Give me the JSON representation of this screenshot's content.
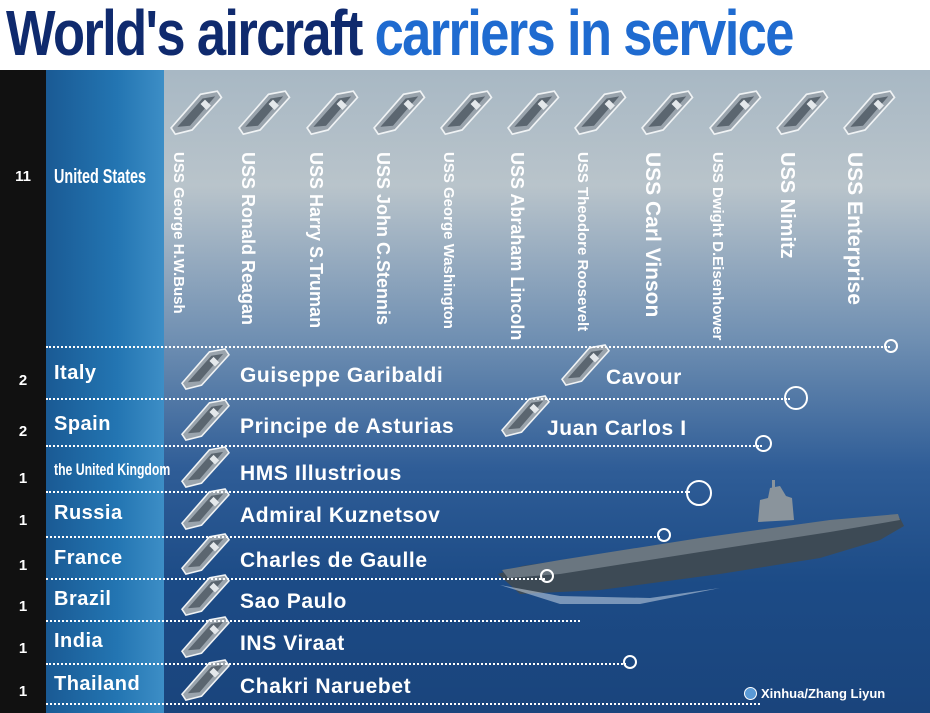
{
  "title": {
    "part1": "World's aircraft",
    "part2": "carriers in service"
  },
  "chart_data": {
    "type": "table",
    "title": "World's aircraft carriers in service",
    "rows": [
      {
        "count": "11",
        "country": "United States",
        "ships": [
          "USS George H.W.Bush",
          "USS Ronald Reagan",
          "USS Harry S.Truman",
          "USS John C.Stennis",
          "USS George Washington",
          "USS Abraham Lincoln",
          "USS Theodore Roosevelt",
          "USS Carl Vinson",
          "USS Dwight D.Eisenhower",
          "USS Nimitz",
          "USS Enterprise"
        ]
      },
      {
        "count": "2",
        "country": "Italy",
        "ships": [
          "Guiseppe Garibaldi",
          "Cavour"
        ]
      },
      {
        "count": "2",
        "country": "Spain",
        "ships": [
          "Principe de Asturias",
          "Juan Carlos I"
        ]
      },
      {
        "count": "1",
        "country": "the United Kingdom",
        "ships": [
          "HMS Illustrious"
        ]
      },
      {
        "count": "1",
        "country": "Russia",
        "ships": [
          "Admiral Kuznetsov"
        ]
      },
      {
        "count": "1",
        "country": "France",
        "ships": [
          "Charles de Gaulle"
        ]
      },
      {
        "count": "1",
        "country": "Brazil",
        "ships": [
          "Sao Paulo"
        ]
      },
      {
        "count": "1",
        "country": "India",
        "ships": [
          "INS Viraat"
        ]
      },
      {
        "count": "1",
        "country": "Thailand",
        "ships": [
          "Chakri Naruebet"
        ]
      }
    ]
  },
  "credit": "Xinhua/Zhang Liyun",
  "icons": {
    "ship": "aircraft-carrier-icon",
    "credit_logo": "xinhua-logo-icon"
  },
  "colors": {
    "title_dark": "#0f2a6e",
    "title_light": "#1f6bd0",
    "count_column": "#111111",
    "country_column": "#2375b2",
    "text": "#ffffff"
  }
}
